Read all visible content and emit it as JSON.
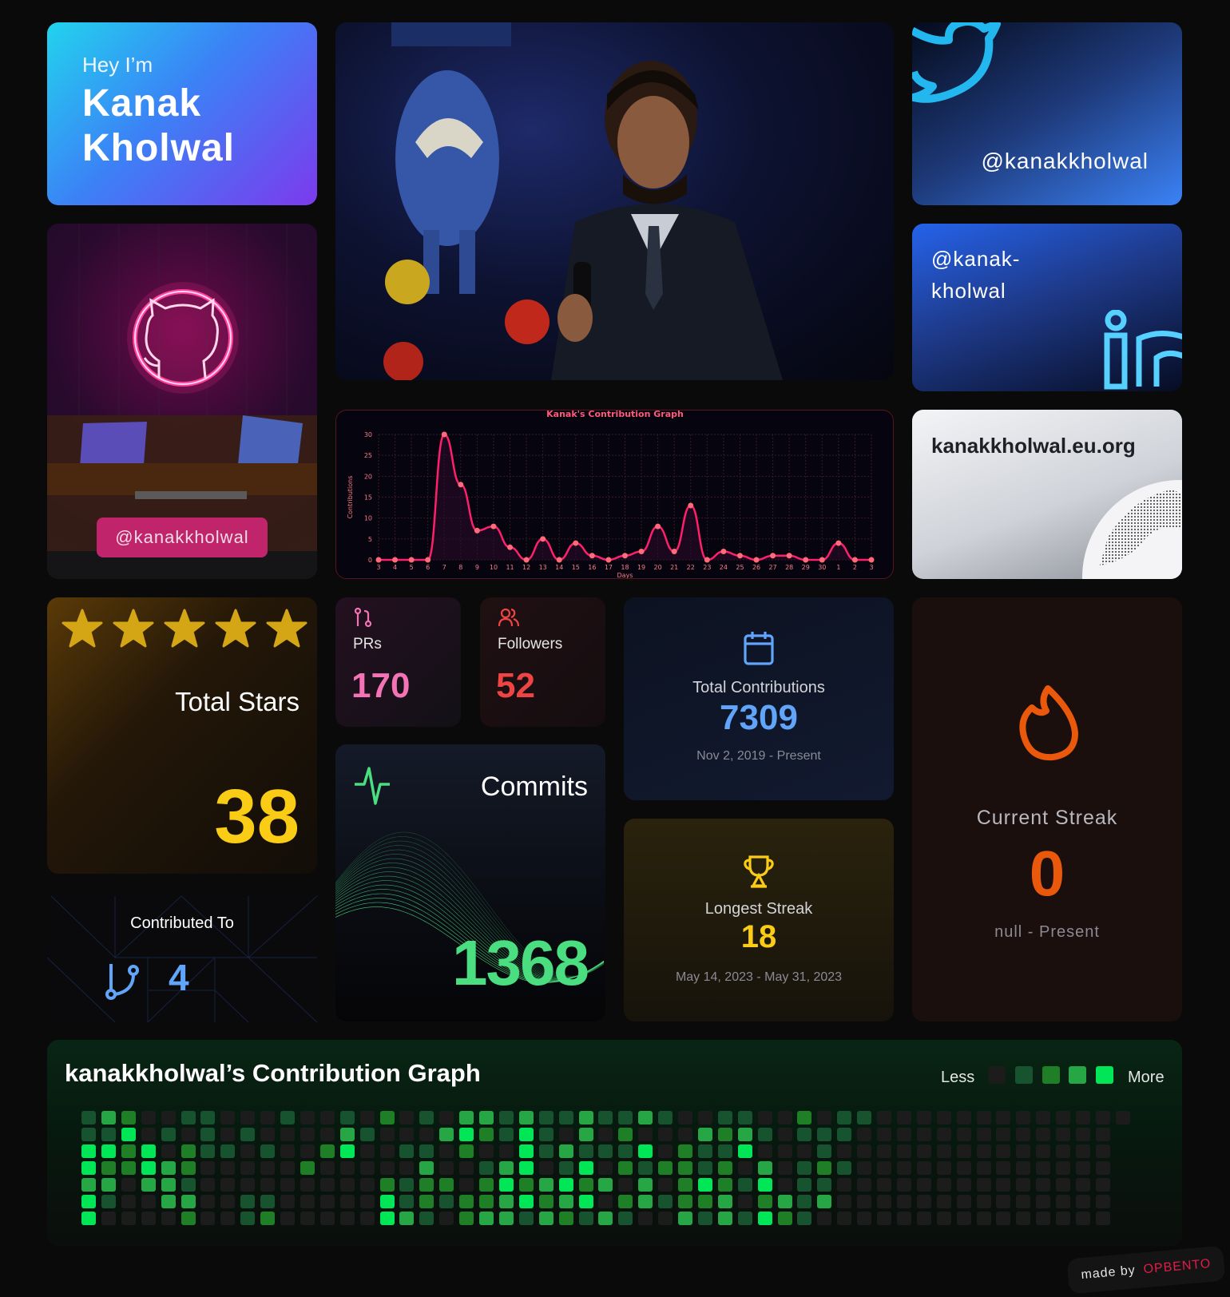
{
  "intro": {
    "greeting": "Hey I’m",
    "first_name": "Kanak",
    "last_name": "Kholwal"
  },
  "twitter": {
    "handle": "@kanakkholwal",
    "icon": "twitter-bird-icon",
    "color": "#22b8ef"
  },
  "github": {
    "handle": "@kanakkholwal",
    "icon": "github-icon",
    "accent": "#c0246a"
  },
  "linkedin": {
    "handle_line1": "@kanak-",
    "handle_line2": "kholwal",
    "icon": "linkedin-icon",
    "color": "#56d0ff"
  },
  "website": {
    "url": "kanakkholwal.eu.org",
    "icon": "globe-icon"
  },
  "chart_data": {
    "type": "line",
    "title": "Kanak's Contribution Graph",
    "xlabel": "Days",
    "ylabel": "Contributions",
    "categories": [
      "3",
      "4",
      "5",
      "6",
      "7",
      "8",
      "9",
      "10",
      "11",
      "12",
      "13",
      "14",
      "15",
      "16",
      "17",
      "18",
      "19",
      "20",
      "21",
      "22",
      "23",
      "24",
      "25",
      "26",
      "27",
      "28",
      "29",
      "30",
      "1",
      "2",
      "3"
    ],
    "values": [
      0,
      0,
      0,
      0,
      30,
      18,
      7,
      8,
      3,
      0,
      5,
      0,
      4,
      1,
      0,
      1,
      2,
      8,
      2,
      13,
      0,
      2,
      1,
      0,
      1,
      1,
      0,
      0,
      4,
      0,
      0
    ],
    "yticks": [
      0,
      5,
      10,
      15,
      20,
      25,
      30
    ],
    "ylim": [
      0,
      30
    ],
    "grid": true,
    "color": "#ff1f6b"
  },
  "stars": {
    "label": "Total Stars",
    "value": "38",
    "star_count": 5,
    "color": "#facc15"
  },
  "contributed": {
    "label": "Contributed To",
    "value": "4",
    "icon": "git-branch-icon"
  },
  "prs": {
    "label": "PRs",
    "value": "170",
    "color": "#f472b6",
    "icon": "git-pull-request-icon"
  },
  "followers": {
    "label": "Followers",
    "value": "52",
    "color": "#ef4444",
    "icon": "users-icon"
  },
  "commits": {
    "label": "Commits",
    "value": "1368",
    "color": "#4ade80",
    "icon": "activity-icon"
  },
  "total_contributions": {
    "label": "Total Contributions",
    "value": "7309",
    "range": "Nov 2, 2019 - Present",
    "color": "#60a5fa",
    "icon": "calendar-icon"
  },
  "longest_streak": {
    "label": "Longest Streak",
    "value": "18",
    "range": "May 14, 2023 - May 31, 2023",
    "color": "#facc15",
    "icon": "trophy-icon"
  },
  "current_streak": {
    "label": "Current Streak",
    "value": "0",
    "range": "null - Present",
    "color": "#ea580c",
    "icon": "flame-icon"
  },
  "contribution_graph": {
    "title": "kanakkholwal’s Contribution Graph",
    "less_label": "Less",
    "more_label": "More",
    "level_colors": [
      "#1c1c1c",
      "#17532f",
      "#1f7f26",
      "#27a646",
      "#00e656"
    ],
    "rows": [
      [
        1,
        3,
        2,
        0,
        0,
        1,
        1,
        0,
        0,
        0,
        1,
        0,
        0,
        1,
        0,
        2,
        0,
        1,
        0,
        3,
        3,
        1,
        3,
        1,
        1,
        3,
        1,
        1,
        3,
        1,
        0,
        0,
        1,
        1,
        0,
        0,
        2,
        0,
        1,
        1,
        0,
        0,
        0,
        0,
        0,
        0,
        0,
        0,
        0,
        0,
        0,
        0,
        0
      ],
      [
        1,
        1,
        4,
        0,
        1,
        0,
        1,
        0,
        1,
        0,
        0,
        0,
        0,
        3,
        1,
        0,
        0,
        0,
        3,
        4,
        2,
        1,
        4,
        1,
        0,
        3,
        0,
        2,
        0,
        0,
        0,
        3,
        2,
        3,
        1,
        0,
        1,
        1,
        1,
        0,
        0,
        0,
        0,
        0,
        0,
        0,
        0,
        0,
        0,
        0,
        0,
        0
      ],
      [
        4,
        4,
        2,
        4,
        0,
        2,
        1,
        1,
        0,
        1,
        0,
        0,
        2,
        4,
        0,
        0,
        1,
        1,
        0,
        2,
        0,
        0,
        4,
        1,
        3,
        1,
        1,
        1,
        4,
        0,
        2,
        1,
        1,
        4,
        0,
        0,
        0,
        1,
        0,
        0,
        0,
        0,
        0,
        0,
        0,
        0,
        0,
        0,
        0,
        0,
        0,
        0
      ],
      [
        4,
        2,
        2,
        4,
        3,
        2,
        0,
        0,
        0,
        0,
        0,
        2,
        0,
        0,
        0,
        0,
        0,
        3,
        0,
        0,
        1,
        3,
        4,
        0,
        1,
        4,
        0,
        2,
        1,
        2,
        2,
        1,
        2,
        0,
        3,
        0,
        1,
        2,
        1,
        0,
        0,
        0,
        0,
        0,
        0,
        0,
        0,
        0,
        0,
        0,
        0,
        0
      ],
      [
        3,
        3,
        0,
        3,
        3,
        1,
        0,
        0,
        0,
        0,
        0,
        0,
        0,
        0,
        0,
        2,
        1,
        2,
        2,
        0,
        2,
        4,
        2,
        3,
        4,
        2,
        3,
        0,
        3,
        0,
        2,
        4,
        2,
        1,
        4,
        0,
        1,
        1,
        0,
        0,
        0,
        0,
        0,
        0,
        0,
        0,
        0,
        0,
        0,
        0,
        0,
        0
      ],
      [
        4,
        1,
        0,
        0,
        3,
        3,
        0,
        0,
        1,
        1,
        0,
        0,
        0,
        0,
        0,
        4,
        1,
        2,
        1,
        2,
        2,
        3,
        4,
        2,
        3,
        4,
        0,
        2,
        3,
        1,
        2,
        2,
        3,
        0,
        2,
        3,
        1,
        3,
        0,
        0,
        0,
        0,
        0,
        0,
        0,
        0,
        0,
        0,
        0,
        0,
        0,
        0
      ],
      [
        4,
        0,
        0,
        0,
        0,
        2,
        0,
        0,
        1,
        2,
        0,
        0,
        0,
        0,
        0,
        4,
        3,
        1,
        0,
        2,
        3,
        3,
        1,
        3,
        2,
        1,
        3,
        1,
        0,
        0,
        3,
        1,
        3,
        1,
        4,
        2,
        1,
        0,
        0,
        0,
        0,
        0,
        0,
        0,
        0,
        0,
        0,
        0,
        0,
        0,
        0,
        0
      ]
    ]
  },
  "footer": {
    "made_by": "made by",
    "brand": "OPBENTO"
  }
}
